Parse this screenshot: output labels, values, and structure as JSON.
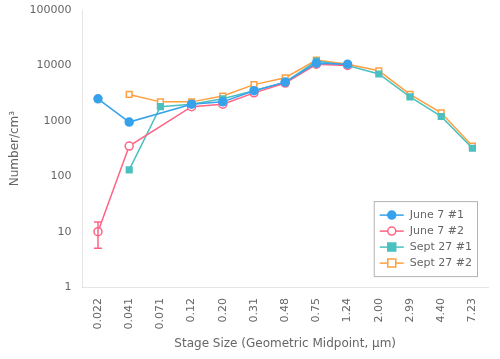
{
  "chart_data": {
    "type": "line",
    "xlabel": "Stage Size (Geometric Midpoint, μm)",
    "ylabel": "Number/cm³",
    "categories": [
      "0.022",
      "0.041",
      "0.071",
      "0.12",
      "0.20",
      "0.31",
      "0.48",
      "0.75",
      "1.24",
      "2.00",
      "2.99",
      "4.40",
      "7.23"
    ],
    "series": [
      {
        "name": "June 7 #1",
        "color": "#36a2eb",
        "marker": "circle",
        "values": [
          2500,
          950,
          null,
          2000,
          2200,
          3500,
          5000,
          11000,
          10500,
          null,
          null,
          null,
          null
        ]
      },
      {
        "name": "June 7 #2",
        "color": "#ff6384",
        "marker": "open_circle",
        "values": [
          10,
          350,
          null,
          1800,
          2000,
          3200,
          4800,
          10500,
          10000,
          null,
          null,
          null,
          null
        ],
        "error": [
          5,
          null,
          null,
          null,
          null,
          null,
          null,
          null,
          null,
          null,
          null,
          null,
          null
        ]
      },
      {
        "name": "Sept 27 #1",
        "color": "#4bc0c0",
        "marker": "square",
        "values": [
          null,
          130,
          1800,
          2000,
          2500,
          3500,
          5000,
          12000,
          10000,
          7000,
          2700,
          1200,
          320
        ]
      },
      {
        "name": "Sept 27 #2",
        "color": "#ff9f40",
        "marker": "open_square",
        "values": [
          null,
          3000,
          2200,
          2200,
          2800,
          4500,
          6000,
          12500,
          10500,
          8000,
          3000,
          1400,
          350
        ]
      }
    ],
    "log": "y",
    "ylim": [
      1,
      100000
    ],
    "yticks": [
      1,
      10,
      100,
      1000,
      10000,
      100000
    ],
    "grid": false,
    "legend": "lower right"
  }
}
